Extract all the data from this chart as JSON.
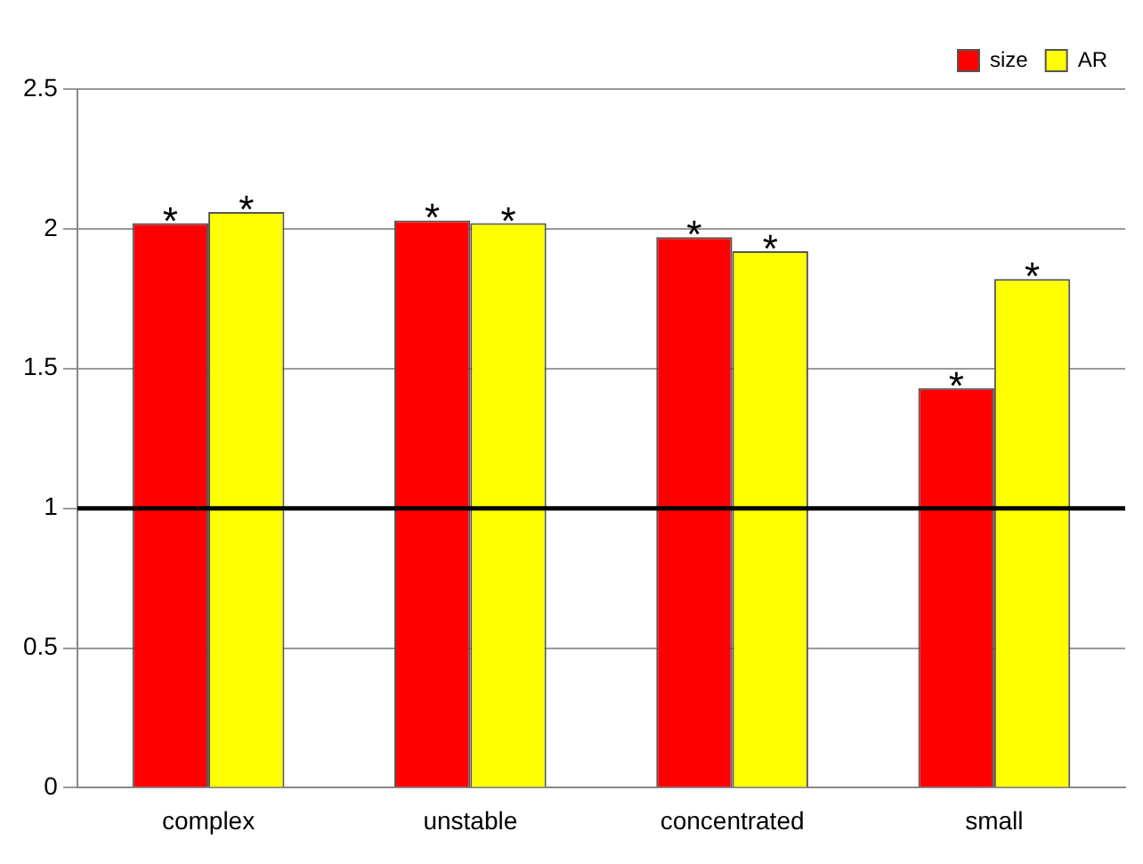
{
  "chart_data": {
    "type": "bar",
    "categories": [
      "complex",
      "unstable",
      "concentrated",
      "small"
    ],
    "series": [
      {
        "name": "size",
        "color": "#ff0000",
        "values": [
          2.02,
          2.03,
          1.97,
          1.43
        ]
      },
      {
        "name": "AR",
        "color": "#ffff00",
        "values": [
          2.06,
          2.02,
          1.92,
          1.82
        ]
      }
    ],
    "ylim": [
      0,
      2.5
    ],
    "yticks": [
      0,
      0.5,
      1,
      1.5,
      2,
      2.5
    ],
    "grid": "y",
    "legend": "top right",
    "ref_lines": [
      {
        "axis": "y",
        "value": 1,
        "color": "#000000"
      }
    ],
    "annotations": [
      {
        "text": "*",
        "x": "complex",
        "y": 2.02
      },
      {
        "text": "*",
        "x": "complex",
        "y": 2.06
      },
      {
        "text": "*",
        "x": "unstable",
        "y": 2.03
      },
      {
        "text": "*",
        "x": "unstable",
        "y": 2.02
      },
      {
        "text": "*",
        "x": "concentrated",
        "y": 1.97
      },
      {
        "text": "*",
        "x": "concentrated",
        "y": 1.92
      },
      {
        "text": "*",
        "x": "small",
        "y": 1.43
      },
      {
        "text": "*",
        "x": "small",
        "y": 1.82
      }
    ]
  }
}
